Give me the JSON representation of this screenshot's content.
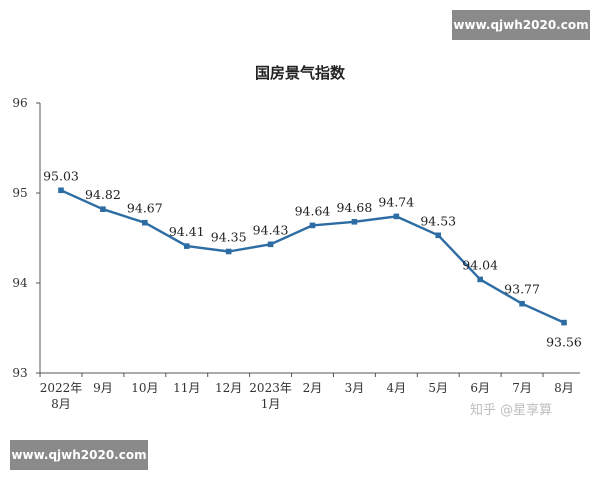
{
  "chart_data": {
    "type": "line",
    "title": "国房景气指数",
    "categories": [
      "2022年\n8月",
      "9月",
      "10月",
      "11月",
      "12月",
      "2023年\n1月",
      "2月",
      "3月",
      "4月",
      "5月",
      "6月",
      "7月",
      "8月"
    ],
    "values": [
      95.03,
      94.82,
      94.67,
      94.41,
      94.35,
      94.43,
      94.64,
      94.68,
      94.74,
      94.53,
      94.04,
      93.77,
      93.56
    ],
    "value_labels": [
      "95.03",
      "94.82",
      "94.67",
      "94.41",
      "94.35",
      "94.43",
      "94.64",
      "94.68",
      "94.74",
      "94.53",
      "94.04",
      "93.77",
      "93.56"
    ],
    "yticks": [
      "96",
      "95",
      "94",
      "93"
    ],
    "ylim": [
      93,
      96
    ],
    "grid": false,
    "line_color": "#2e6da4"
  },
  "watermarks": {
    "top": "www.qjwh2020.com",
    "bottom": "www.qjwh2020.com",
    "credit": "知乎 @星享算"
  }
}
